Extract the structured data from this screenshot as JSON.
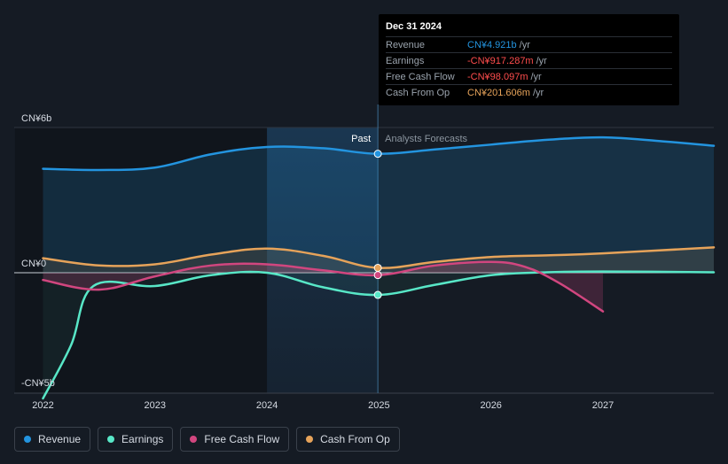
{
  "chart_data": {
    "type": "line",
    "x_axis": {
      "ticks": [
        "2022",
        "2023",
        "2024",
        "2025",
        "2026",
        "2027"
      ],
      "range": [
        2021.75,
        2027.99
      ]
    },
    "y_axis": {
      "tick_labels": [
        "CN¥6b",
        "CN¥0",
        "-CN¥5b"
      ],
      "ticks": [
        6,
        0,
        -5
      ],
      "range": [
        -5.4,
        6.5
      ]
    },
    "divider_year": 2024.99,
    "past_label": "Past",
    "forecast_label": "Analysts Forecasts",
    "series": [
      {
        "name": "Revenue",
        "color": "#2394df",
        "fill": true,
        "points": [
          [
            2022.0,
            4.3
          ],
          [
            2022.5,
            4.25
          ],
          [
            2023.0,
            4.35
          ],
          [
            2023.5,
            4.9
          ],
          [
            2024.0,
            5.2
          ],
          [
            2024.5,
            5.15
          ],
          [
            2024.99,
            4.921
          ],
          [
            2025.5,
            5.1
          ],
          [
            2026.0,
            5.3
          ],
          [
            2026.5,
            5.5
          ],
          [
            2027.0,
            5.6
          ],
          [
            2027.5,
            5.45
          ],
          [
            2027.99,
            5.25
          ]
        ]
      },
      {
        "name": "Earnings",
        "color": "#58e7c7",
        "fill": true,
        "points": [
          [
            2022.0,
            -5.2
          ],
          [
            2022.25,
            -3.0
          ],
          [
            2022.45,
            -0.55
          ],
          [
            2023.0,
            -0.55
          ],
          [
            2023.5,
            -0.1
          ],
          [
            2024.0,
            0.0
          ],
          [
            2024.5,
            -0.6
          ],
          [
            2024.99,
            -0.917
          ],
          [
            2025.5,
            -0.5
          ],
          [
            2026.0,
            -0.1
          ],
          [
            2026.5,
            0.02
          ],
          [
            2027.0,
            0.05
          ],
          [
            2027.99,
            0.02
          ]
        ]
      },
      {
        "name": "Free Cash Flow",
        "color": "#d1467f",
        "fill": true,
        "points": [
          [
            2022.0,
            -0.3
          ],
          [
            2022.5,
            -0.7
          ],
          [
            2023.0,
            -0.15
          ],
          [
            2023.5,
            0.3
          ],
          [
            2024.0,
            0.35
          ],
          [
            2024.5,
            0.1
          ],
          [
            2024.99,
            -0.098
          ],
          [
            2025.5,
            0.3
          ],
          [
            2026.0,
            0.45
          ],
          [
            2026.3,
            0.25
          ],
          [
            2026.6,
            -0.4
          ],
          [
            2027.0,
            -1.6
          ]
        ]
      },
      {
        "name": "Cash From Op",
        "color": "#e6a35a",
        "fill": true,
        "points": [
          [
            2022.0,
            0.6
          ],
          [
            2022.5,
            0.3
          ],
          [
            2023.0,
            0.35
          ],
          [
            2023.5,
            0.75
          ],
          [
            2024.0,
            1.0
          ],
          [
            2024.5,
            0.7
          ],
          [
            2024.99,
            0.202
          ],
          [
            2025.5,
            0.45
          ],
          [
            2026.0,
            0.65
          ],
          [
            2026.5,
            0.72
          ],
          [
            2027.0,
            0.8
          ],
          [
            2027.99,
            1.05
          ]
        ]
      }
    ]
  },
  "tooltip": {
    "date": "Dec 31 2024",
    "unit": "/yr",
    "rows": [
      {
        "label": "Revenue",
        "value": "CN¥4.921b",
        "color": "#2394df"
      },
      {
        "label": "Earnings",
        "value": "-CN¥917.287m",
        "color": "#ff4d4d"
      },
      {
        "label": "Free Cash Flow",
        "value": "-CN¥98.097m",
        "color": "#ff4d4d"
      },
      {
        "label": "Cash From Op",
        "value": "CN¥201.606m",
        "color": "#e6a35a"
      }
    ]
  },
  "legend": [
    {
      "label": "Revenue",
      "color": "#2394df"
    },
    {
      "label": "Earnings",
      "color": "#58e7c7"
    },
    {
      "label": "Free Cash Flow",
      "color": "#d1467f"
    },
    {
      "label": "Cash From Op",
      "color": "#e6a35a"
    }
  ]
}
